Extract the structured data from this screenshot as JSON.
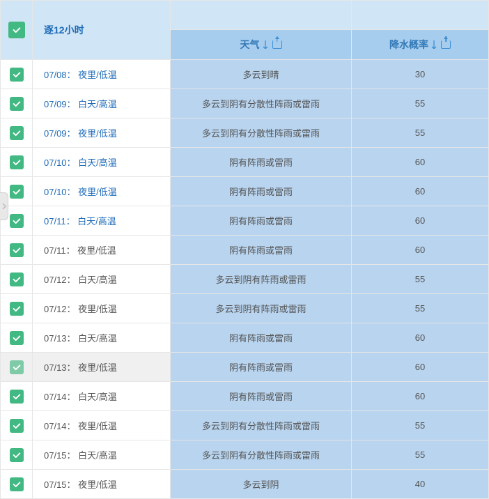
{
  "header": {
    "time_col": "逐12小时",
    "weather_col": "天气",
    "prob_col": "降水概率"
  },
  "colors": {
    "header_light": "#d0e5f5",
    "header_dark": "#a7cdee",
    "cell_blue": "#b8d4ef",
    "check_green": "#42b983",
    "link": "#1e6bb8",
    "border": "#e6e6e6"
  },
  "rows": [
    {
      "date": "07/08",
      "period": "夜里/低温",
      "weather": "多云到晴",
      "prob": "30",
      "link": true,
      "hover": false
    },
    {
      "date": "07/09",
      "period": "白天/高温",
      "weather": "多云到阴有分散性阵雨或雷雨",
      "prob": "55",
      "link": true,
      "hover": false
    },
    {
      "date": "07/09",
      "period": "夜里/低温",
      "weather": "多云到阴有分散性阵雨或雷雨",
      "prob": "55",
      "link": true,
      "hover": false
    },
    {
      "date": "07/10",
      "period": "白天/高温",
      "weather": "阴有阵雨或雷雨",
      "prob": "60",
      "link": true,
      "hover": false
    },
    {
      "date": "07/10",
      "period": "夜里/低温",
      "weather": "阴有阵雨或雷雨",
      "prob": "60",
      "link": true,
      "hover": false
    },
    {
      "date": "07/11",
      "period": "白天/高温",
      "weather": "阴有阵雨或雷雨",
      "prob": "60",
      "link": true,
      "hover": false
    },
    {
      "date": "07/11",
      "period": "夜里/低温",
      "weather": "阴有阵雨或雷雨",
      "prob": "60",
      "link": false,
      "hover": false
    },
    {
      "date": "07/12",
      "period": "白天/高温",
      "weather": "多云到阴有阵雨或雷雨",
      "prob": "55",
      "link": false,
      "hover": false
    },
    {
      "date": "07/12",
      "period": "夜里/低温",
      "weather": "多云到阴有阵雨或雷雨",
      "prob": "55",
      "link": false,
      "hover": false
    },
    {
      "date": "07/13",
      "period": "白天/高温",
      "weather": "阴有阵雨或雷雨",
      "prob": "60",
      "link": false,
      "hover": false
    },
    {
      "date": "07/13",
      "period": "夜里/低温",
      "weather": "阴有阵雨或雷雨",
      "prob": "60",
      "link": false,
      "hover": true
    },
    {
      "date": "07/14",
      "period": "白天/高温",
      "weather": "阴有阵雨或雷雨",
      "prob": "60",
      "link": false,
      "hover": false
    },
    {
      "date": "07/14",
      "period": "夜里/低温",
      "weather": "多云到阴有分散性阵雨或雷雨",
      "prob": "55",
      "link": false,
      "hover": false
    },
    {
      "date": "07/15",
      "period": "白天/高温",
      "weather": "多云到阴有分散性阵雨或雷雨",
      "prob": "55",
      "link": false,
      "hover": false
    },
    {
      "date": "07/15",
      "period": "夜里/低温",
      "weather": "多云到阴",
      "prob": "40",
      "link": false,
      "hover": false
    }
  ]
}
